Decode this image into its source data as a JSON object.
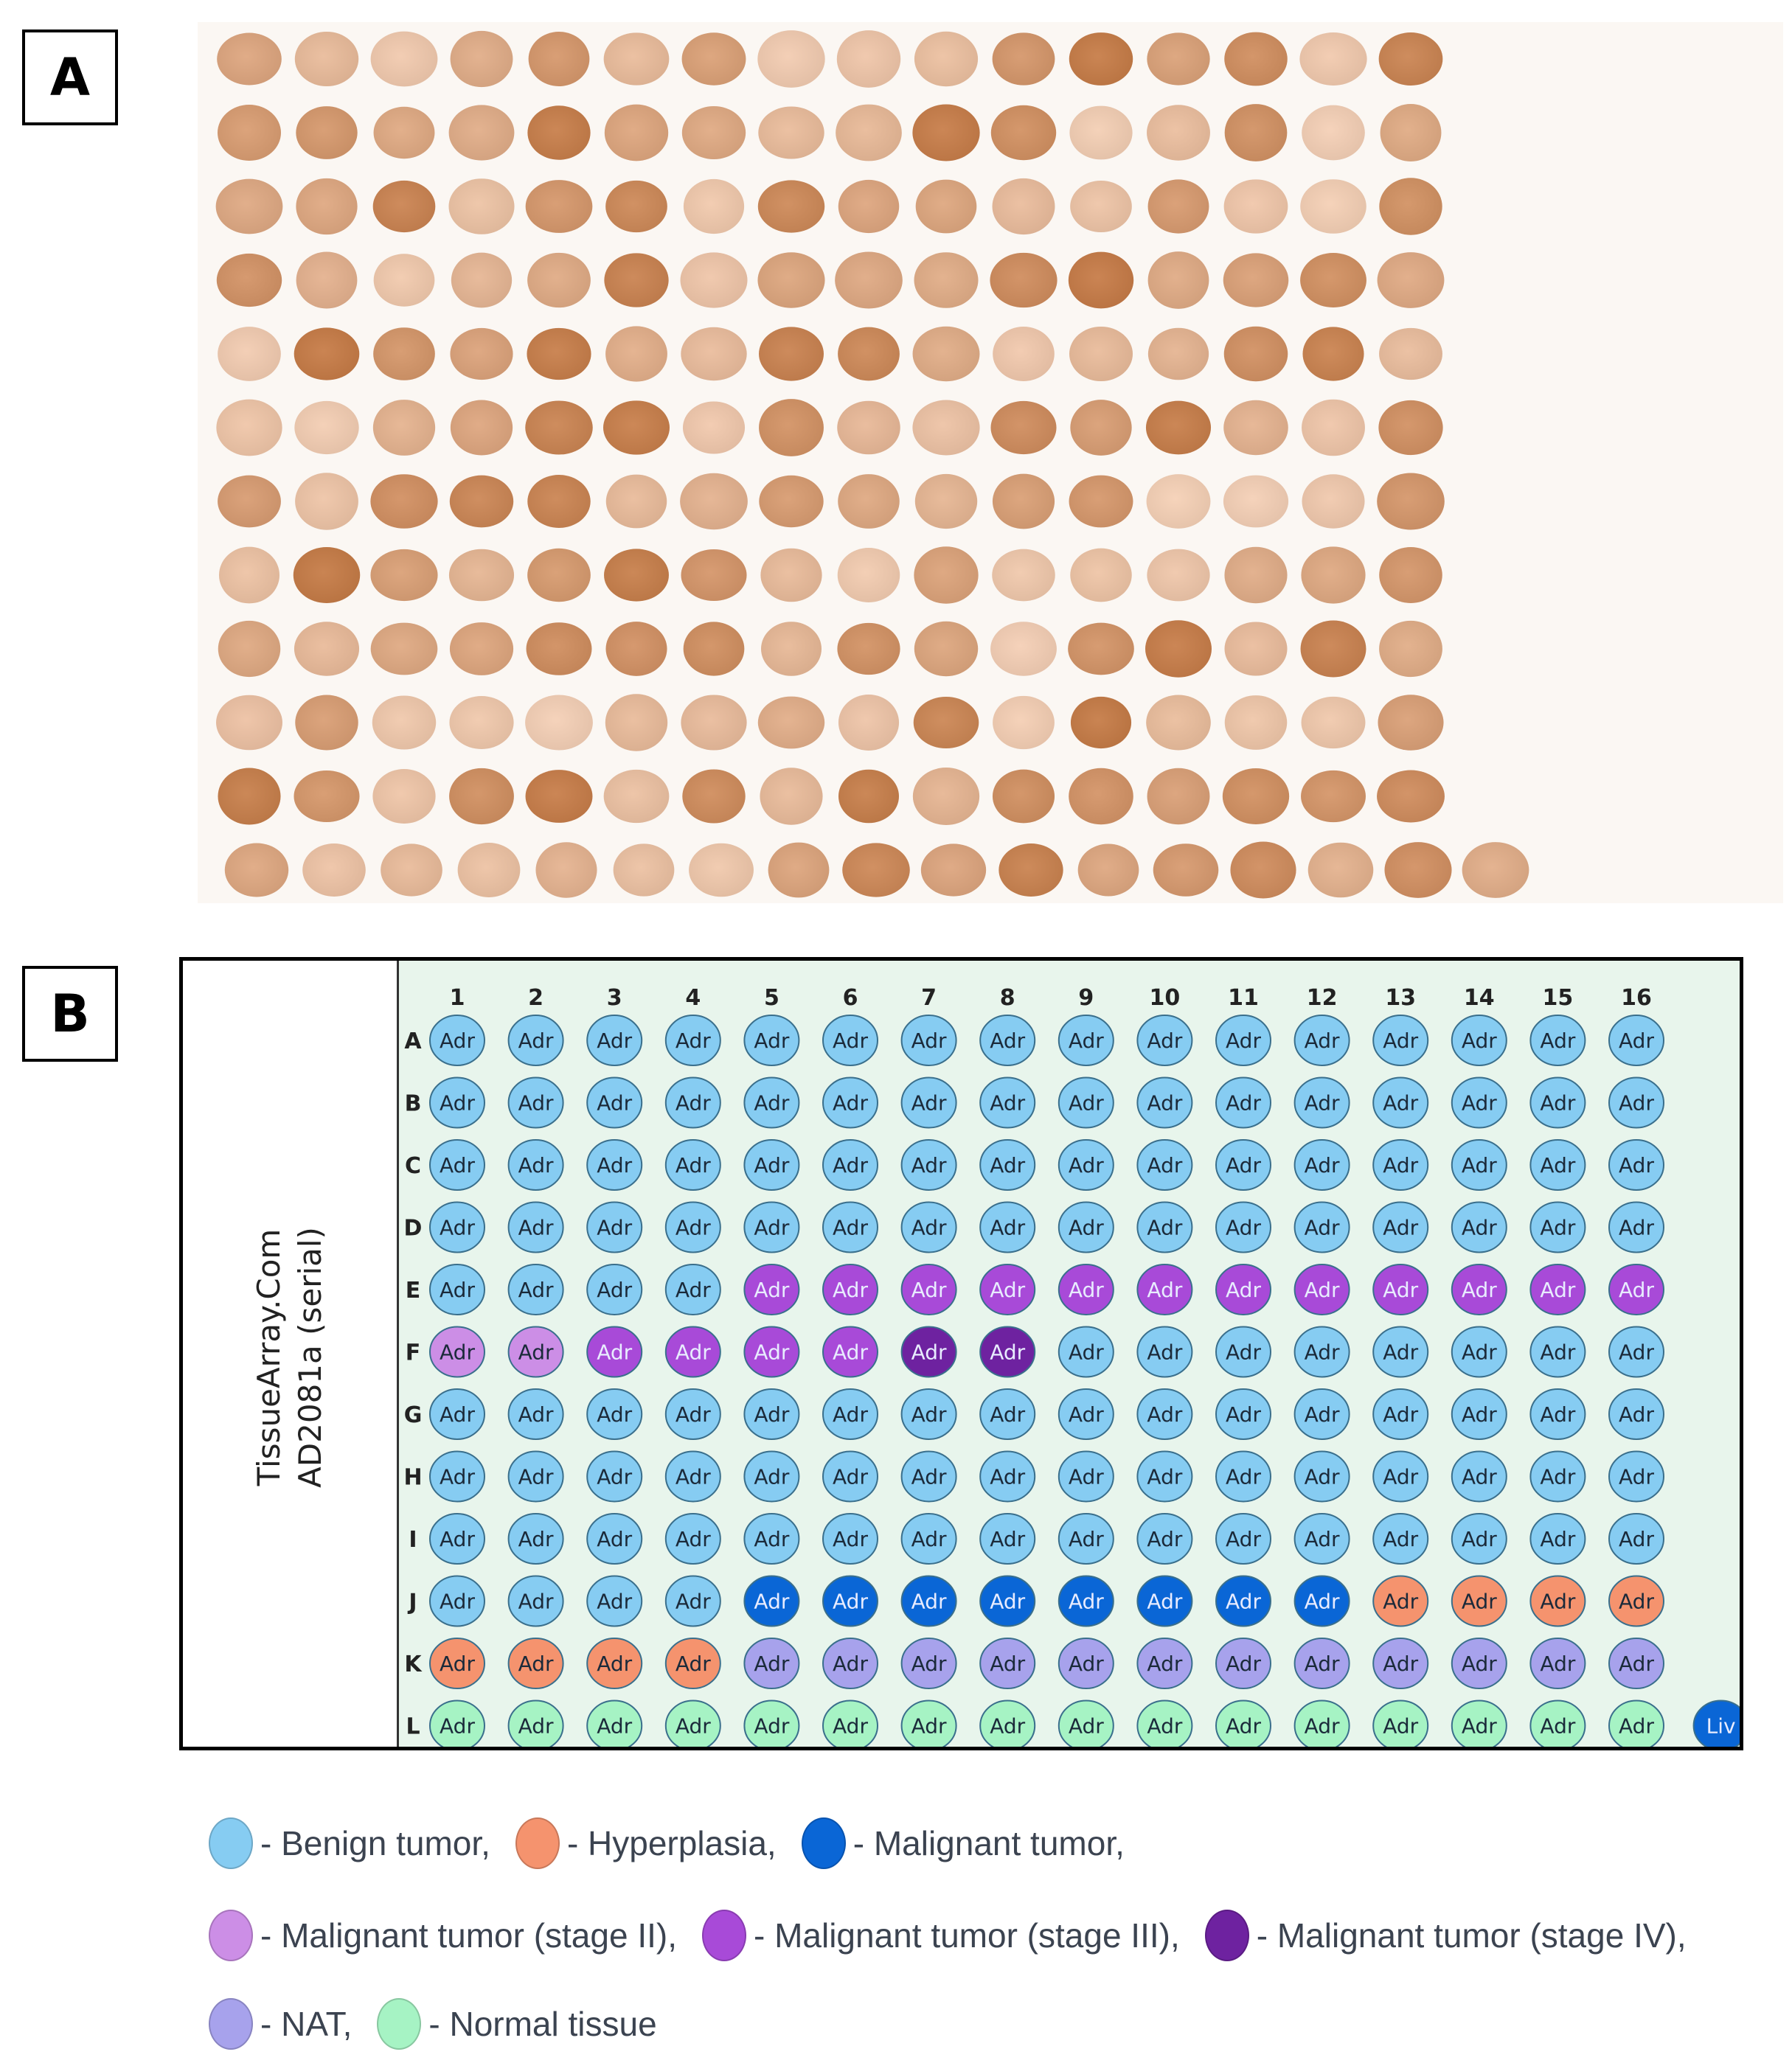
{
  "panels": {
    "a_label": "A",
    "b_label": "B"
  },
  "array_map": {
    "title_line1": "TissueArray.Com",
    "title_line2": "AD2081a  (serial)",
    "columns": [
      "1",
      "2",
      "3",
      "4",
      "5",
      "6",
      "7",
      "8",
      "9",
      "10",
      "11",
      "12",
      "13",
      "14",
      "15",
      "16"
    ],
    "rows": [
      "A",
      "B",
      "C",
      "D",
      "E",
      "F",
      "G",
      "H",
      "I",
      "J",
      "K",
      "L"
    ],
    "core_label": "Adr",
    "control_label": "Liv",
    "grid": [
      [
        "B",
        "B",
        "B",
        "B",
        "B",
        "B",
        "B",
        "B",
        "B",
        "B",
        "B",
        "B",
        "B",
        "B",
        "B",
        "B"
      ],
      [
        "B",
        "B",
        "B",
        "B",
        "B",
        "B",
        "B",
        "B",
        "B",
        "B",
        "B",
        "B",
        "B",
        "B",
        "B",
        "B"
      ],
      [
        "B",
        "B",
        "B",
        "B",
        "B",
        "B",
        "B",
        "B",
        "B",
        "B",
        "B",
        "B",
        "B",
        "B",
        "B",
        "B"
      ],
      [
        "B",
        "B",
        "B",
        "B",
        "B",
        "B",
        "B",
        "B",
        "B",
        "B",
        "B",
        "B",
        "B",
        "B",
        "B",
        "B"
      ],
      [
        "B",
        "B",
        "B",
        "B",
        "M3",
        "M3",
        "M3",
        "M3",
        "M3",
        "M3",
        "M3",
        "M3",
        "M3",
        "M3",
        "M3",
        "M3"
      ],
      [
        "M2",
        "M2",
        "M3",
        "M3",
        "M3",
        "M3",
        "M4",
        "M4",
        "B",
        "B",
        "B",
        "B",
        "B",
        "B",
        "B",
        "B"
      ],
      [
        "B",
        "B",
        "B",
        "B",
        "B",
        "B",
        "B",
        "B",
        "B",
        "B",
        "B",
        "B",
        "B",
        "B",
        "B",
        "B"
      ],
      [
        "B",
        "B",
        "B",
        "B",
        "B",
        "B",
        "B",
        "B",
        "B",
        "B",
        "B",
        "B",
        "B",
        "B",
        "B",
        "B"
      ],
      [
        "B",
        "B",
        "B",
        "B",
        "B",
        "B",
        "B",
        "B",
        "B",
        "B",
        "B",
        "B",
        "B",
        "B",
        "B",
        "B"
      ],
      [
        "B",
        "B",
        "B",
        "B",
        "M",
        "M",
        "M",
        "M",
        "M",
        "M",
        "M",
        "M",
        "H",
        "H",
        "H",
        "H"
      ],
      [
        "H",
        "H",
        "H",
        "H",
        "NAT",
        "NAT",
        "NAT",
        "NAT",
        "NAT",
        "NAT",
        "NAT",
        "NAT",
        "NAT",
        "NAT",
        "NAT",
        "NAT"
      ],
      [
        "N",
        "N",
        "N",
        "N",
        "N",
        "N",
        "N",
        "N",
        "N",
        "N",
        "N",
        "N",
        "N",
        "N",
        "N",
        "N"
      ]
    ],
    "colors": {
      "B": "#86ccf2",
      "H": "#f5936e",
      "M": "#0a66d6",
      "M2": "#cc8ee6",
      "M3": "#a84ad8",
      "M4": "#6e22a0",
      "NAT": "#a7a2ec",
      "N": "#a6f3c4"
    }
  },
  "legend": {
    "rows": [
      [
        {
          "key": "B",
          "text": "- Benign tumor,"
        },
        {
          "key": "H",
          "text": "- Hyperplasia,"
        },
        {
          "key": "M",
          "text": "- Malignant tumor,"
        }
      ],
      [
        {
          "key": "M2",
          "text": "- Malignant tumor (stage II),"
        },
        {
          "key": "M3",
          "text": "- Malignant tumor (stage III),"
        },
        {
          "key": "M4",
          "text": "- Malignant tumor (stage IV),"
        }
      ],
      [
        {
          "key": "NAT",
          "text": "- NAT,"
        },
        {
          "key": "N",
          "text": "- Normal tissue"
        }
      ]
    ]
  }
}
